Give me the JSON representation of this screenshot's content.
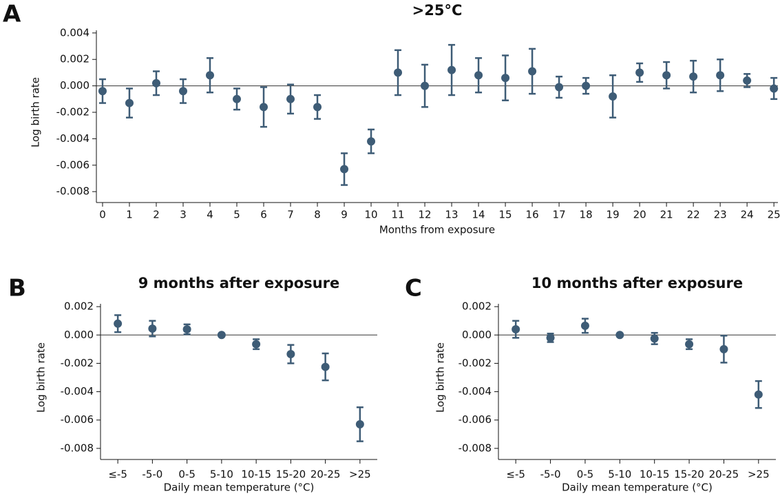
{
  "chart_data": [
    {
      "type": "scatter",
      "panel": "A",
      "title": ">25°C",
      "x_label": "Months from exposure",
      "y_label": "Log birth rate",
      "color": "#3e5c76",
      "x": [
        0,
        1,
        2,
        3,
        4,
        5,
        6,
        7,
        8,
        9,
        10,
        11,
        12,
        13,
        14,
        15,
        16,
        17,
        18,
        19,
        20,
        21,
        22,
        23,
        24,
        25
      ],
      "xlim": [
        -0.23,
        25.15
      ],
      "xticks": [
        0,
        1,
        2,
        3,
        4,
        5,
        6,
        7,
        8,
        9,
        10,
        11,
        12,
        13,
        14,
        15,
        16,
        17,
        18,
        19,
        20,
        21,
        22,
        23,
        24,
        25
      ],
      "values": [
        -0.0004,
        -0.0013,
        0.0002,
        -0.0004,
        0.0008,
        -0.001,
        -0.0016,
        -0.001,
        -0.0016,
        -0.0063,
        -0.0042,
        0.001,
        0.0,
        0.0012,
        0.0008,
        0.0006,
        0.0011,
        -0.0001,
        0.0,
        -0.0008,
        0.001,
        0.0008,
        0.0007,
        0.0008,
        0.0004,
        -0.0002
      ],
      "errors": [
        0.0009,
        0.0011,
        0.0009,
        0.0009,
        0.0013,
        0.0008,
        0.0015,
        0.0011,
        0.0009,
        0.0012,
        0.0009,
        0.0017,
        0.0016,
        0.0019,
        0.0013,
        0.0017,
        0.0017,
        0.0008,
        0.0006,
        0.0016,
        0.0007,
        0.001,
        0.0012,
        0.0012,
        0.0005,
        0.0008
      ],
      "ylim": [
        -0.0082,
        0.0042
      ],
      "yticks": [
        0.004,
        0.002,
        {
          "value": 0,
          "label": "0.000"
        },
        -0.002,
        -0.004,
        -0.006,
        -0.008
      ]
    },
    {
      "type": "scatter",
      "panel": "B",
      "title": "9 months after exposure",
      "x_label": "Daily mean temperature (°C)",
      "y_label": "Log birth rate",
      "color": "#3e5c76",
      "categories": [
        "≤-5",
        "-5-0",
        "0-5",
        "5-10",
        "10-15",
        "15-20",
        "20-25",
        ">25"
      ],
      "values": [
        0.0008,
        0.00045,
        0.0004,
        0.0,
        -0.00065,
        -0.00135,
        -0.00225,
        -0.0063
      ],
      "errors": [
        0.0006,
        0.00055,
        0.00035,
        0.0,
        0.00035,
        0.00065,
        0.00095,
        0.0012
      ],
      "ylim": [
        -0.0082,
        0.0022
      ],
      "yticks": [
        0.002,
        {
          "value": 0,
          "label": "0.000"
        },
        -0.002,
        -0.004,
        -0.006,
        -0.008
      ]
    },
    {
      "type": "scatter",
      "panel": "C",
      "title": "10 months after exposure",
      "x_label": "Daily mean temperature (°C)",
      "y_label": "Log birth rate",
      "color": "#3e5c76",
      "categories": [
        "≤-5",
        "-5-0",
        "0-5",
        "5-10",
        "10-15",
        "15-20",
        "20-25",
        ">25"
      ],
      "values": [
        0.0004,
        -0.0002,
        0.00065,
        0.0,
        -0.00025,
        -0.00065,
        -0.001,
        -0.0042
      ],
      "errors": [
        0.0006,
        0.0003,
        0.0005,
        0.0,
        0.0004,
        0.00035,
        0.00095,
        0.00095
      ],
      "ylim": [
        -0.0082,
        0.0022
      ],
      "yticks": [
        0.002,
        {
          "value": 0,
          "label": "0.000"
        },
        -0.002,
        -0.004,
        -0.006,
        -0.008
      ]
    }
  ]
}
